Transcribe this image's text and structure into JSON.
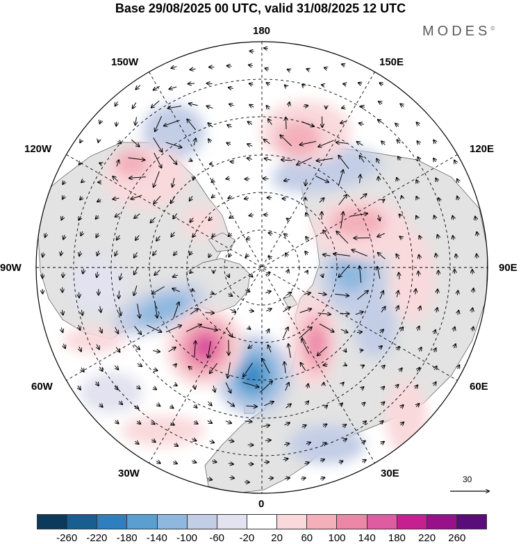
{
  "title": "Base 29/08/2025 00 UTC, valid 31/08/2025 12 UTC",
  "brand": {
    "text": "MODES",
    "mark": "©"
  },
  "longitude_labels": {
    "lon_180": "180",
    "lon_150e": "150E",
    "lon_120e": "120E",
    "lon_90e": "90E",
    "lon_60e": "60E",
    "lon_30e": "30E",
    "lon_0": "0",
    "lon_30w": "30W",
    "lon_60w": "60W",
    "lon_90w": "90W",
    "lon_120w": "120W",
    "lon_150w": "150W"
  },
  "reference_vector": {
    "value": "30",
    "icon": "arrow-right-icon"
  },
  "colorbar": {
    "ticks": [
      "-260",
      "-220",
      "-180",
      "-140",
      "-100",
      "-60",
      "-20",
      "20",
      "60",
      "100",
      "140",
      "180",
      "220",
      "260"
    ],
    "colors": [
      "#0b3a5c",
      "#185f91",
      "#2e7fbf",
      "#5a9fd0",
      "#8eb8df",
      "#c2cde6",
      "#e2e2f0",
      "#ffffff",
      "#f9d9dc",
      "#f3b0bb",
      "#ec87a8",
      "#e05ca1",
      "#c51f91",
      "#98108a",
      "#5a0c7a"
    ]
  },
  "colors": {
    "land": "#e3e3e3",
    "ocean": "#ffffff",
    "grid": "#000000"
  }
}
